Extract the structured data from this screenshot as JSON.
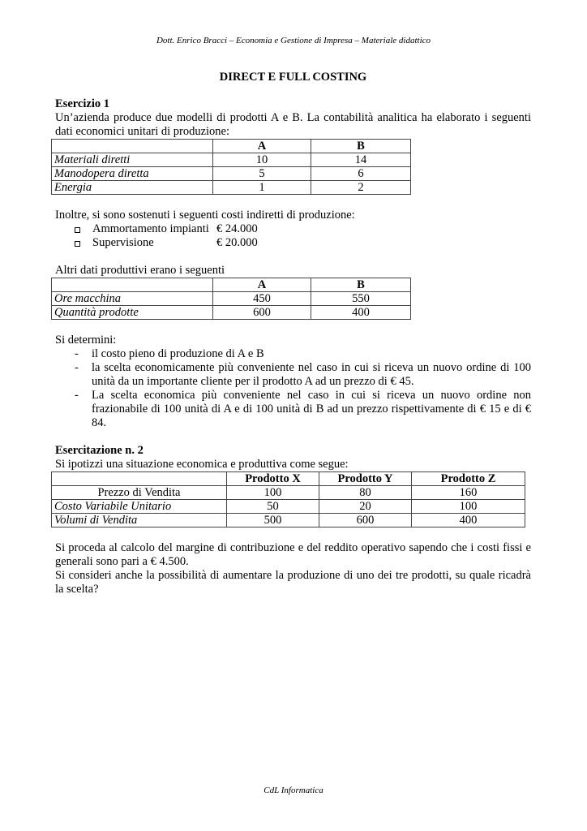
{
  "header": "Dott. Enrico Bracci – Economia e Gestione di Impresa – Materiale didattico",
  "title": "DIRECT E FULL COSTING",
  "ex1": {
    "heading": "Esercizio 1",
    "intro": "Un’azienda produce due modelli di prodotti A e B. La contabilità analitica ha elaborato i seguenti dati economici unitari di produzione:",
    "table1": {
      "cols": [
        "A",
        "B"
      ],
      "rows": [
        [
          "Materiali diretti",
          "10",
          "14"
        ],
        [
          "Manodopera diretta",
          "5",
          "6"
        ],
        [
          "Energia",
          "1",
          "2"
        ]
      ]
    },
    "indirect_intro": "Inoltre, si sono sostenuti i seguenti costi indiretti di produzione:",
    "indirect": [
      {
        "label": "Ammortamento impianti",
        "value": "€ 24.000"
      },
      {
        "label": "Supervisione",
        "value": "€ 20.000"
      }
    ],
    "other_intro": "Altri dati produttivi erano i seguenti",
    "table2": {
      "cols": [
        "A",
        "B"
      ],
      "rows": [
        [
          "Ore macchina",
          "450",
          "550"
        ],
        [
          "Quantità prodotte",
          "600",
          "400"
        ]
      ]
    },
    "tasks_intro": "Si determini:",
    "tasks": [
      "il costo pieno di produzione di A e B",
      "la scelta economicamente più conveniente nel caso in cui si riceva un nuovo ordine di 100 unità da un importante cliente per il prodotto A ad un prezzo di € 45.",
      "La scelta economica più conveniente nel caso in cui si riceva un nuovo ordine non frazionabile di 100 unità di A e di 100 unità di B ad un prezzo rispettivamente di € 15 e di € 84."
    ]
  },
  "ex2": {
    "heading": "Esercitazione n. 2",
    "intro": "Si ipotizzi una situazione economica e produttiva come segue:",
    "table": {
      "cols": [
        "Prodotto X",
        "Prodotto Y",
        "Prodotto Z"
      ],
      "rows": [
        [
          "Prezzo di Vendita",
          "100",
          "80",
          "160"
        ],
        [
          "Costo Variabile Unitario",
          "50",
          "20",
          "100"
        ],
        [
          "Volumi di Vendita",
          "500",
          "600",
          "400"
        ]
      ]
    },
    "p1": "Si proceda al calcolo del margine di contribuzione e del reddito operativo sapendo che i costi fissi e generali sono pari a € 4.500.",
    "p2": "Si consideri anche la possibilità di aumentare la produzione di uno dei tre prodotti, su quale ricadrà la scelta?"
  },
  "footer": "CdL Informatica"
}
